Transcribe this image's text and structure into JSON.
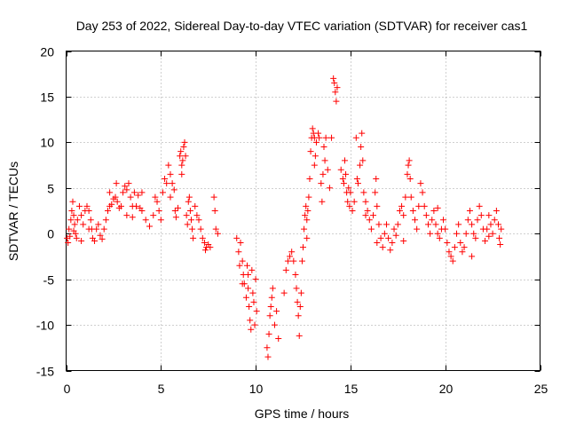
{
  "chart_data": {
    "type": "scatter",
    "title": "Day 253 of 2022, Sidereal Day-to-day VTEC variation (SDTVAR) for receiver cas1",
    "xlabel": "GPS time / hours",
    "ylabel": "SDTVAR / TECUs",
    "xlim": [
      0,
      25
    ],
    "ylim": [
      -15,
      20
    ],
    "xticks": [
      0,
      5,
      10,
      15,
      20,
      25
    ],
    "yticks": [
      -15,
      -10,
      -5,
      0,
      5,
      10,
      15,
      20
    ],
    "xtick_labels": [
      "0",
      "5",
      "10",
      "15",
      "20",
      "25"
    ],
    "ytick_labels": [
      "-15",
      "-10",
      "-5",
      "0",
      "5",
      "10",
      "15",
      "20"
    ],
    "grid": true,
    "marker": "+",
    "color": "#ff0000",
    "series": [
      {
        "name": "SDTVAR",
        "points": [
          [
            0.05,
            -0.5
          ],
          [
            0.1,
            -1.0
          ],
          [
            0.15,
            0.5
          ],
          [
            0.2,
            -0.3
          ],
          [
            0.25,
            1.5
          ],
          [
            0.3,
            2.5
          ],
          [
            0.35,
            3.5
          ],
          [
            0.4,
            2.0
          ],
          [
            0.45,
            1.0
          ],
          [
            0.5,
            0.0
          ],
          [
            0.55,
            -0.5
          ],
          [
            0.6,
            1.5
          ],
          [
            0.7,
            3.0
          ],
          [
            0.8,
            2.0
          ],
          [
            0.9,
            1.0
          ],
          [
            1.0,
            2.5
          ],
          [
            1.1,
            3.0
          ],
          [
            1.2,
            2.5
          ],
          [
            1.3,
            1.5
          ],
          [
            1.35,
            0.5
          ],
          [
            1.4,
            -0.5
          ],
          [
            1.5,
            -0.8
          ],
          [
            1.6,
            0.5
          ],
          [
            1.7,
            1.0
          ],
          [
            1.8,
            -0.2
          ],
          [
            1.9,
            -0.6
          ],
          [
            2.0,
            0.5
          ],
          [
            2.1,
            1.5
          ],
          [
            2.2,
            2.5
          ],
          [
            2.3,
            3.0
          ],
          [
            2.4,
            3.2
          ],
          [
            2.5,
            3.8
          ],
          [
            2.6,
            4.0
          ],
          [
            2.65,
            5.5
          ],
          [
            2.7,
            3.5
          ],
          [
            2.8,
            2.8
          ],
          [
            2.9,
            3.0
          ],
          [
            3.0,
            4.5
          ],
          [
            3.1,
            5.2
          ],
          [
            3.2,
            4.8
          ],
          [
            3.3,
            5.5
          ],
          [
            3.4,
            4.0
          ],
          [
            3.5,
            3.0
          ],
          [
            3.6,
            4.5
          ],
          [
            3.7,
            3.0
          ],
          [
            3.8,
            4.2
          ],
          [
            3.9,
            2.8
          ],
          [
            4.0,
            2.5
          ],
          [
            4.2,
            1.5
          ],
          [
            4.4,
            0.8
          ],
          [
            4.6,
            2.0
          ],
          [
            4.7,
            4.0
          ],
          [
            4.8,
            3.5
          ],
          [
            4.9,
            2.5
          ],
          [
            5.0,
            1.5
          ],
          [
            5.1,
            4.5
          ],
          [
            5.2,
            6.0
          ],
          [
            5.3,
            5.5
          ],
          [
            5.4,
            7.5
          ],
          [
            5.5,
            6.5
          ],
          [
            5.6,
            5.5
          ],
          [
            5.7,
            4.8
          ],
          [
            5.75,
            2.5
          ],
          [
            5.8,
            1.8
          ],
          [
            5.9,
            2.8
          ],
          [
            6.0,
            8.5
          ],
          [
            6.05,
            9.0
          ],
          [
            6.1,
            7.5
          ],
          [
            6.15,
            8.0
          ],
          [
            6.2,
            9.5
          ],
          [
            6.25,
            10.0
          ],
          [
            6.3,
            8.5
          ],
          [
            6.35,
            2.0
          ],
          [
            6.4,
            1.0
          ],
          [
            6.45,
            3.5
          ],
          [
            6.5,
            4.0
          ],
          [
            6.55,
            2.5
          ],
          [
            6.6,
            1.5
          ],
          [
            6.65,
            0.5
          ],
          [
            6.7,
            -0.5
          ],
          [
            6.8,
            3.0
          ],
          [
            6.9,
            2.0
          ],
          [
            7.0,
            1.5
          ],
          [
            7.1,
            0.5
          ],
          [
            7.2,
            -0.5
          ],
          [
            7.3,
            -1.0
          ],
          [
            7.35,
            -1.8
          ],
          [
            7.4,
            -1.5
          ],
          [
            7.5,
            -1.2
          ],
          [
            7.6,
            -1.5
          ],
          [
            7.8,
            4.0
          ],
          [
            7.85,
            2.5
          ],
          [
            7.9,
            0.5
          ],
          [
            8.0,
            0.0
          ],
          [
            9.0,
            -0.5
          ],
          [
            9.1,
            -2.0
          ],
          [
            9.15,
            -3.5
          ],
          [
            9.2,
            -1.0
          ],
          [
            9.3,
            -3.0
          ],
          [
            9.35,
            -4.5
          ],
          [
            9.4,
            -5.5
          ],
          [
            9.5,
            -7.0
          ],
          [
            9.55,
            -3.5
          ],
          [
            9.6,
            -6.0
          ],
          [
            9.65,
            -8.0
          ],
          [
            9.7,
            -9.5
          ],
          [
            9.75,
            -10.5
          ],
          [
            9.8,
            -4.0
          ],
          [
            9.85,
            -6.5
          ],
          [
            9.9,
            -7.5
          ],
          [
            9.95,
            -10.0
          ],
          [
            10.0,
            -5.0
          ],
          [
            10.05,
            -8.5
          ],
          [
            10.6,
            -12.5
          ],
          [
            10.65,
            -13.5
          ],
          [
            10.7,
            -11.0
          ],
          [
            10.75,
            -9.0
          ],
          [
            10.8,
            -8.0
          ],
          [
            10.85,
            -7.0
          ],
          [
            10.9,
            -6.0
          ],
          [
            11.0,
            -10.0
          ],
          [
            11.1,
            -8.5
          ],
          [
            11.2,
            -11.5
          ],
          [
            11.5,
            -6.5
          ],
          [
            11.6,
            -4.0
          ],
          [
            11.7,
            -3.0
          ],
          [
            11.8,
            -2.5
          ],
          [
            11.9,
            -2.0
          ],
          [
            12.0,
            -3.0
          ],
          [
            12.1,
            -4.5
          ],
          [
            12.15,
            -6.0
          ],
          [
            12.2,
            -7.5
          ],
          [
            12.25,
            -9.0
          ],
          [
            12.3,
            -11.2
          ],
          [
            12.35,
            -8.0
          ],
          [
            12.4,
            -6.5
          ],
          [
            12.45,
            -3.0
          ],
          [
            12.5,
            -1.5
          ],
          [
            12.55,
            0.5
          ],
          [
            12.6,
            2.0
          ],
          [
            12.65,
            3.0
          ],
          [
            12.7,
            1.5
          ],
          [
            12.75,
            2.5
          ],
          [
            12.8,
            4.0
          ],
          [
            12.85,
            6.0
          ],
          [
            12.9,
            9.0
          ],
          [
            12.95,
            10.5
          ],
          [
            13.0,
            11.5
          ],
          [
            13.05,
            11.0
          ],
          [
            13.1,
            10.5
          ],
          [
            13.15,
            8.5
          ],
          [
            13.2,
            10.0
          ],
          [
            13.3,
            11.0
          ],
          [
            13.35,
            10.5
          ],
          [
            13.45,
            5.5
          ],
          [
            13.5,
            3.5
          ],
          [
            13.55,
            6.5
          ],
          [
            13.6,
            9.5
          ],
          [
            13.65,
            8.0
          ],
          [
            13.7,
            10.5
          ],
          [
            13.8,
            7.0
          ],
          [
            13.9,
            5.0
          ],
          [
            14.0,
            10.5
          ],
          [
            14.1,
            17.0
          ],
          [
            14.15,
            16.5
          ],
          [
            14.2,
            15.5
          ],
          [
            14.25,
            14.5
          ],
          [
            14.3,
            16.0
          ],
          [
            14.5,
            7.0
          ],
          [
            14.6,
            6.0
          ],
          [
            14.65,
            5.5
          ],
          [
            14.7,
            8.0
          ],
          [
            14.75,
            6.5
          ],
          [
            14.8,
            4.5
          ],
          [
            14.85,
            3.5
          ],
          [
            14.9,
            5.0
          ],
          [
            14.95,
            3.0
          ],
          [
            15.0,
            4.5
          ],
          [
            15.1,
            2.5
          ],
          [
            15.2,
            3.5
          ],
          [
            15.3,
            10.5
          ],
          [
            15.35,
            6.0
          ],
          [
            15.4,
            5.5
          ],
          [
            15.5,
            7.5
          ],
          [
            15.55,
            9.5
          ],
          [
            15.6,
            11.0
          ],
          [
            15.65,
            8.0
          ],
          [
            15.7,
            4.5
          ],
          [
            15.8,
            3.5
          ],
          [
            15.9,
            2.5
          ],
          [
            16.0,
            1.5
          ],
          [
            16.1,
            0.5
          ],
          [
            16.2,
            2.0
          ],
          [
            16.3,
            4.5
          ],
          [
            16.35,
            6.0
          ],
          [
            16.4,
            3.0
          ],
          [
            16.5,
            1.0
          ],
          [
            16.6,
            -0.5
          ],
          [
            16.7,
            -1.5
          ],
          [
            16.8,
            0.0
          ],
          [
            16.9,
            1.0
          ],
          [
            17.0,
            -0.5
          ],
          [
            17.1,
            -1.8
          ],
          [
            17.2,
            -1.0
          ],
          [
            17.3,
            0.5
          ],
          [
            17.4,
            -0.2
          ],
          [
            17.5,
            1.0
          ],
          [
            17.6,
            2.5
          ],
          [
            17.7,
            3.0
          ],
          [
            17.8,
            2.0
          ],
          [
            17.9,
            4.0
          ],
          [
            18.0,
            6.5
          ],
          [
            18.05,
            7.5
          ],
          [
            18.1,
            8.0
          ],
          [
            18.15,
            6.0
          ],
          [
            18.2,
            4.0
          ],
          [
            18.3,
            2.5
          ],
          [
            18.4,
            1.5
          ],
          [
            18.5,
            0.5
          ],
          [
            18.6,
            3.0
          ],
          [
            18.7,
            5.5
          ],
          [
            18.8,
            4.5
          ],
          [
            18.9,
            3.0
          ],
          [
            19.0,
            2.0
          ],
          [
            19.1,
            1.0
          ],
          [
            19.2,
            0.0
          ],
          [
            19.3,
            1.5
          ],
          [
            19.4,
            2.5
          ],
          [
            19.5,
            1.0
          ],
          [
            19.6,
            0.0
          ],
          [
            19.7,
            -0.5
          ],
          [
            19.8,
            0.5
          ],
          [
            19.9,
            1.5
          ],
          [
            20.0,
            0.5
          ],
          [
            20.1,
            -1.0
          ],
          [
            20.2,
            -2.0
          ],
          [
            20.3,
            -2.5
          ],
          [
            20.4,
            -3.0
          ],
          [
            20.5,
            -1.5
          ],
          [
            20.6,
            0.0
          ],
          [
            20.7,
            1.0
          ],
          [
            20.8,
            -1.0
          ],
          [
            20.9,
            -2.0
          ],
          [
            21.0,
            -1.5
          ],
          [
            21.1,
            0.0
          ],
          [
            21.2,
            1.5
          ],
          [
            21.3,
            2.5
          ],
          [
            21.4,
            1.0
          ],
          [
            21.5,
            0.0
          ],
          [
            21.6,
            -0.5
          ],
          [
            21.7,
            1.5
          ],
          [
            21.8,
            3.0
          ],
          [
            21.9,
            2.0
          ],
          [
            22.0,
            0.5
          ],
          [
            22.1,
            -0.8
          ],
          [
            22.2,
            0.5
          ],
          [
            22.3,
            2.0
          ],
          [
            22.4,
            1.0
          ],
          [
            22.5,
            0.0
          ],
          [
            22.6,
            1.5
          ],
          [
            22.7,
            2.5
          ],
          [
            22.8,
            1.0
          ],
          [
            22.85,
            -0.5
          ],
          [
            22.9,
            -1.2
          ],
          [
            22.95,
            0.5
          ],
          [
            3.2,
            2.0
          ],
          [
            3.5,
            1.8
          ],
          [
            4.0,
            4.5
          ],
          [
            2.3,
            4.5
          ],
          [
            1.2,
            0.5
          ],
          [
            0.8,
            -0.8
          ],
          [
            0.4,
            0.3
          ],
          [
            6.1,
            6.5
          ],
          [
            5.5,
            4.0
          ],
          [
            9.3,
            -5.5
          ],
          [
            9.6,
            -4.5
          ],
          [
            12.7,
            -0.5
          ],
          [
            13.1,
            7.5
          ],
          [
            16.4,
            -1.0
          ],
          [
            19.6,
            2.8
          ],
          [
            21.4,
            -2.5
          ],
          [
            22.3,
            -0.3
          ],
          [
            17.8,
            -0.8
          ],
          [
            15.8,
            2.0
          ]
        ]
      }
    ]
  }
}
